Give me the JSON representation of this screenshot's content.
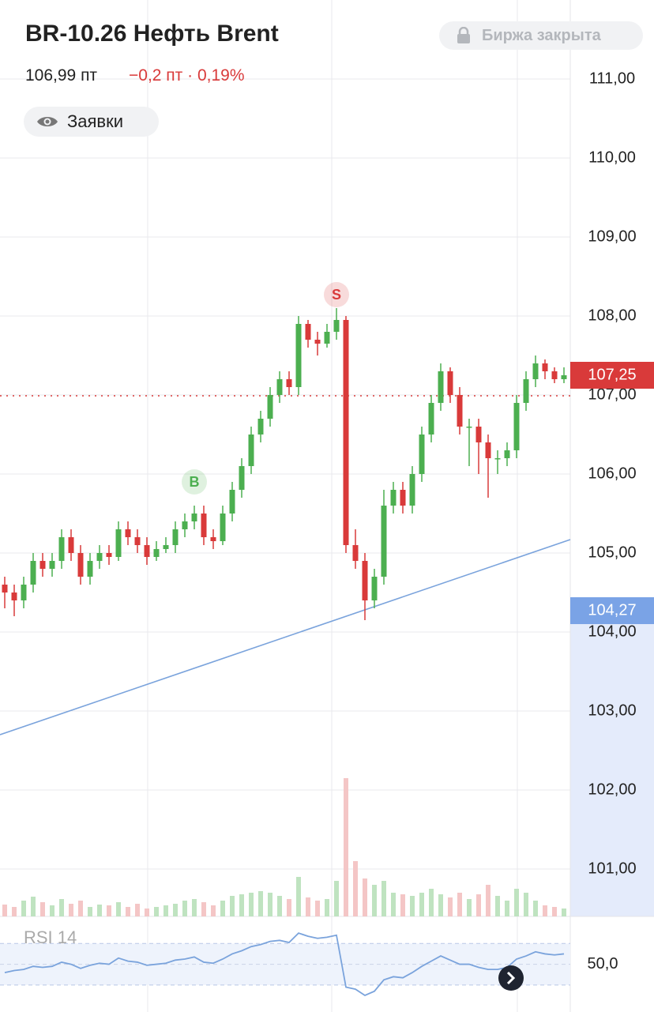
{
  "header": {
    "title": "BR-10.26 Нефть Brent",
    "status": "Биржа закрыта",
    "price": "106,99 пт",
    "change": "−0,2 пт · 0,19%",
    "orders": "Заявки"
  },
  "chart_data": {
    "type": "candlestick",
    "open": [
      104.6,
      104.5,
      104.4,
      104.6,
      104.9,
      104.8,
      104.9,
      105.2,
      105.0,
      104.7,
      104.9,
      105.0,
      104.95,
      105.3,
      105.2,
      105.1,
      104.95,
      105.05,
      105.1,
      105.3,
      105.4,
      105.5,
      105.2,
      105.15,
      105.5,
      105.8,
      106.1,
      106.5,
      106.7,
      107.0,
      107.2,
      107.1,
      107.9,
      107.7,
      107.65,
      107.8,
      107.95,
      105.1,
      104.9,
      104.4,
      104.7,
      105.6,
      105.8,
      105.6,
      106.0,
      106.5,
      106.9,
      107.3,
      107.0,
      106.6,
      106.6,
      106.4,
      106.2,
      106.2,
      106.3,
      106.9,
      107.2,
      107.4,
      107.3,
      107.2
    ],
    "high": [
      104.7,
      104.6,
      104.7,
      105.0,
      105.0,
      105.0,
      105.3,
      105.3,
      105.1,
      105.0,
      105.1,
      105.1,
      105.4,
      105.4,
      105.3,
      105.2,
      105.15,
      105.2,
      105.4,
      105.5,
      105.6,
      105.6,
      105.3,
      105.6,
      105.9,
      106.2,
      106.6,
      106.8,
      107.1,
      107.3,
      107.3,
      108.0,
      107.95,
      107.8,
      107.9,
      108.1,
      108.0,
      105.3,
      105.0,
      104.8,
      105.8,
      105.9,
      105.9,
      106.1,
      106.6,
      107.0,
      107.4,
      107.35,
      107.1,
      106.7,
      106.7,
      106.5,
      106.3,
      106.4,
      107.0,
      107.3,
      107.5,
      107.45,
      107.35,
      107.35
    ],
    "low": [
      104.3,
      104.2,
      104.3,
      104.5,
      104.7,
      104.7,
      104.8,
      104.9,
      104.6,
      104.6,
      104.8,
      104.85,
      104.9,
      105.1,
      105.0,
      104.85,
      104.9,
      105.0,
      105.0,
      105.2,
      105.3,
      105.1,
      105.05,
      105.1,
      105.4,
      105.7,
      106.0,
      106.4,
      106.6,
      106.9,
      107.0,
      107.0,
      107.6,
      107.5,
      107.6,
      107.7,
      105.0,
      104.8,
      104.15,
      104.3,
      104.6,
      105.5,
      105.5,
      105.5,
      105.9,
      106.4,
      106.8,
      106.9,
      106.5,
      106.1,
      106.0,
      105.7,
      106.0,
      106.1,
      106.2,
      106.8,
      107.1,
      107.2,
      107.15,
      107.15
    ],
    "close": [
      104.5,
      104.4,
      104.6,
      104.9,
      104.8,
      104.9,
      105.2,
      105.0,
      104.7,
      104.9,
      105.0,
      104.95,
      105.3,
      105.2,
      105.1,
      104.95,
      105.05,
      105.1,
      105.3,
      105.4,
      105.5,
      105.2,
      105.15,
      105.5,
      105.8,
      106.1,
      106.5,
      106.7,
      107.0,
      107.2,
      107.1,
      107.9,
      107.7,
      107.65,
      107.8,
      107.95,
      105.1,
      104.9,
      104.4,
      104.7,
      105.6,
      105.8,
      105.6,
      106.0,
      106.5,
      106.9,
      107.3,
      107.0,
      106.6,
      106.6,
      106.4,
      106.2,
      106.2,
      106.3,
      106.9,
      107.2,
      107.4,
      107.3,
      107.2,
      107.25
    ],
    "volume": [
      15,
      12,
      20,
      25,
      18,
      14,
      22,
      16,
      20,
      12,
      15,
      14,
      18,
      12,
      16,
      10,
      12,
      14,
      16,
      20,
      22,
      18,
      14,
      20,
      26,
      28,
      30,
      32,
      30,
      26,
      22,
      50,
      24,
      20,
      22,
      45,
      175,
      70,
      48,
      40,
      45,
      30,
      28,
      26,
      30,
      35,
      28,
      24,
      30,
      22,
      28,
      40,
      26,
      20,
      35,
      30,
      20,
      14,
      12,
      10
    ],
    "up_color": "#4caf50",
    "down_color": "#d93a3a",
    "ylim": [
      100.4,
      112
    ],
    "yticks": [
      {
        "value": 111,
        "label": "111,00"
      },
      {
        "value": 110,
        "label": "110,00"
      },
      {
        "value": 109,
        "label": "109,00"
      },
      {
        "value": 108,
        "label": "108,00"
      },
      {
        "value": 107,
        "label": "107,00"
      },
      {
        "value": 106,
        "label": "106,00"
      },
      {
        "value": 105,
        "label": "105,00"
      },
      {
        "value": 104,
        "label": "104,00"
      },
      {
        "value": 103,
        "label": "103,00"
      },
      {
        "value": 102,
        "label": "102,00"
      },
      {
        "value": 101,
        "label": "101,00"
      }
    ],
    "grid": true,
    "last_price_line": 106.99,
    "price_label": {
      "value": 107.25,
      "label": "107,25"
    },
    "level_label": {
      "value": 104.27,
      "label": "104,27"
    },
    "trendline": {
      "start": 102.7,
      "end": 105.17
    },
    "markers": [
      {
        "label": "B",
        "candle": 20,
        "value": 105.9,
        "color": "#4caf50"
      },
      {
        "label": "S",
        "candle": 35,
        "value": 108.27,
        "color": "#d93a3a"
      }
    ],
    "rsi": {
      "title": "RSI 14",
      "values": [
        42,
        44,
        45,
        48,
        47,
        48,
        52,
        50,
        46,
        49,
        51,
        50,
        56,
        53,
        52,
        49,
        50,
        51,
        54,
        55,
        57,
        52,
        51,
        55,
        60,
        63,
        67,
        69,
        72,
        73,
        71,
        80,
        77,
        75,
        76,
        78,
        28,
        26,
        20,
        24,
        35,
        38,
        37,
        42,
        48,
        53,
        58,
        54,
        50,
        50,
        47,
        45,
        45,
        47,
        55,
        58,
        62,
        60,
        59,
        60
      ],
      "ylim": [
        20,
        90
      ],
      "yticks": [
        {
          "value": 50,
          "label": "50,0"
        }
      ],
      "bands": [
        30,
        70
      ],
      "color": "#7aa3dc"
    }
  }
}
